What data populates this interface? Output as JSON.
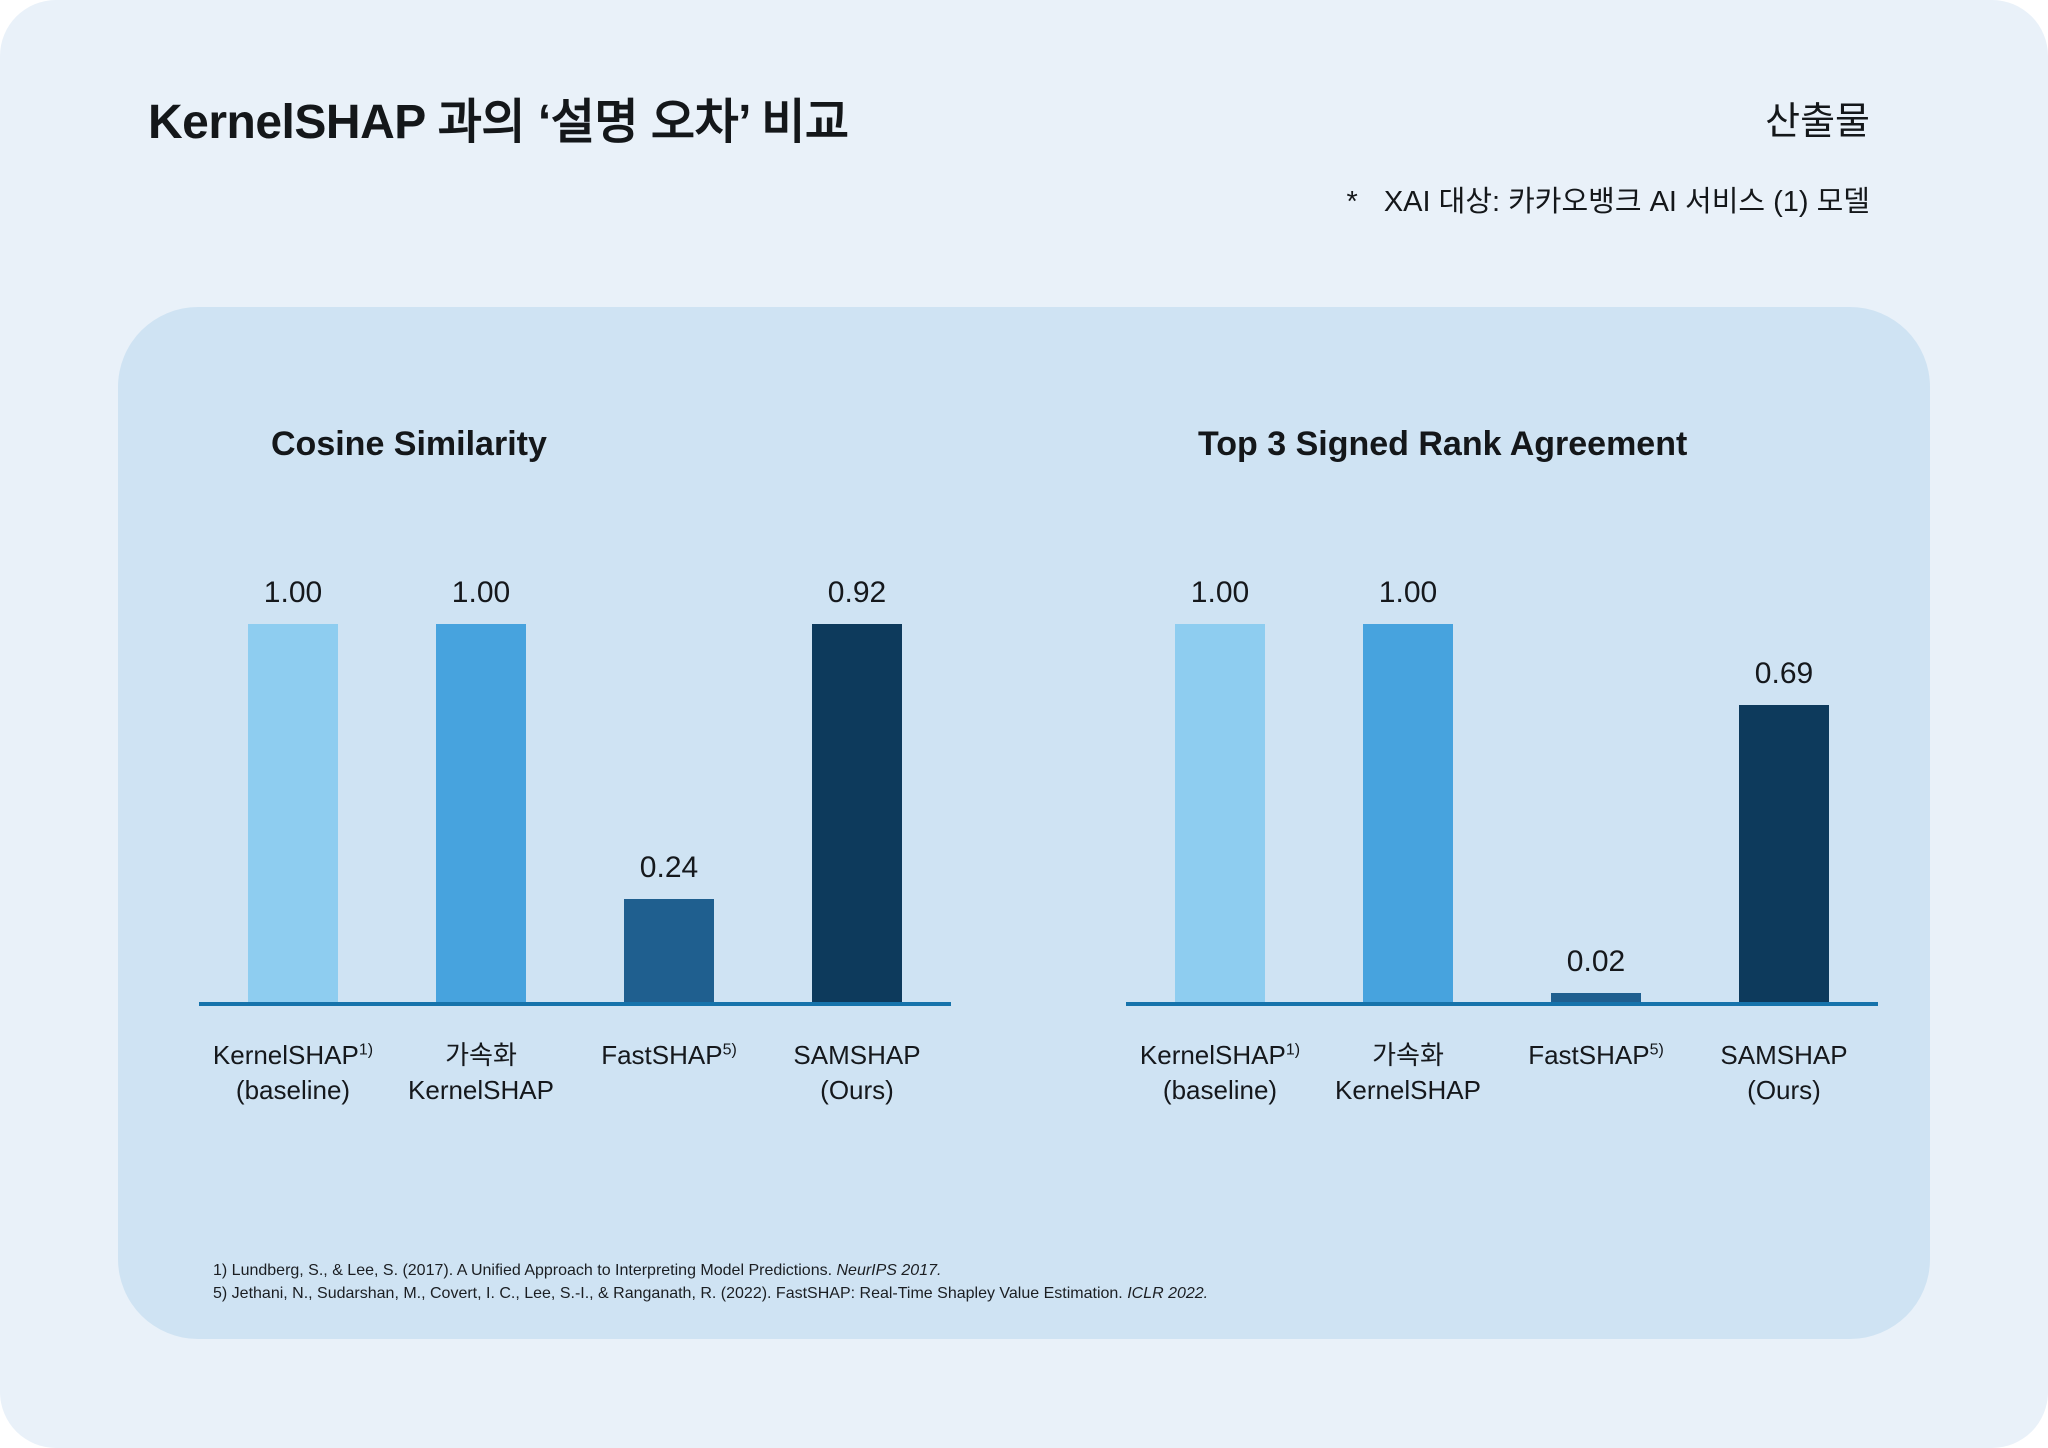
{
  "page": {
    "title": "KernelSHAP 과의 ‘설명 오차’ 비교",
    "header_right": "산출물",
    "note_mark": "*",
    "note_text": "XAI 대상: 카카오뱅크 AI 서비스 (1) 모델"
  },
  "colors": {
    "background": "#e9f1f9",
    "panel": "#cfe3f3",
    "axis": "#1673ab",
    "text": "#14171a"
  },
  "chart_data": [
    {
      "type": "bar",
      "title": "Cosine Similarity",
      "categories": [
        {
          "lines": [
            "KernelSHAP",
            "(baseline)"
          ],
          "sup": "1)",
          "sup_line": 0
        },
        {
          "lines": [
            "가속화",
            "KernelSHAP"
          ],
          "sup": null
        },
        {
          "lines": [
            "FastSHAP"
          ],
          "sup": "5)",
          "sup_line": 0
        },
        {
          "lines": [
            "SAMSHAP",
            "(Ours)"
          ],
          "sup": null
        }
      ],
      "values": [
        1.0,
        1.0,
        0.24,
        0.92
      ],
      "value_labels": [
        "1.00",
        "1.00",
        "0.24",
        "0.92"
      ],
      "bar_colors": [
        "#8ecdf0",
        "#47a3de",
        "#1f5f8f",
        "#0d3a5c"
      ],
      "ylim": [
        0,
        1.0
      ],
      "xlabel": "",
      "ylabel": "",
      "grid": false,
      "legend": false
    },
    {
      "type": "bar",
      "title": "Top 3 Signed Rank Agreement",
      "categories": [
        {
          "lines": [
            "KernelSHAP",
            "(baseline)"
          ],
          "sup": "1)",
          "sup_line": 0
        },
        {
          "lines": [
            "가속화",
            "KernelSHAP"
          ],
          "sup": null
        },
        {
          "lines": [
            "FastSHAP"
          ],
          "sup": "5)",
          "sup_line": 0
        },
        {
          "lines": [
            "SAMSHAP",
            "(Ours)"
          ],
          "sup": null
        }
      ],
      "values": [
        1.0,
        1.0,
        0.02,
        0.69
      ],
      "value_labels": [
        "1.00",
        "1.00",
        "0.02",
        "0.69"
      ],
      "bar_colors": [
        "#8ecdf0",
        "#47a3de",
        "#1f5f8f",
        "#0d3a5c"
      ],
      "ylim": [
        0,
        1.0
      ],
      "xlabel": "",
      "ylabel": "",
      "grid": false,
      "legend": false
    }
  ],
  "footnotes": [
    {
      "parts": [
        {
          "text": "1) Lundberg, S., & Lee, S. (2017). A Unified Approach to Interpreting Model Predictions. "
        },
        {
          "text": "NeurIPS 2017.",
          "italic": true
        }
      ]
    },
    {
      "parts": [
        {
          "text": "5) Jethani, N., Sudarshan, M., Covert, I. C., Lee, S.-I., & Ranganath, R. (2022). FastSHAP: Real-Time Shapley Value Estimation. "
        },
        {
          "text": "ICLR 2022.",
          "italic": true
        }
      ]
    }
  ]
}
